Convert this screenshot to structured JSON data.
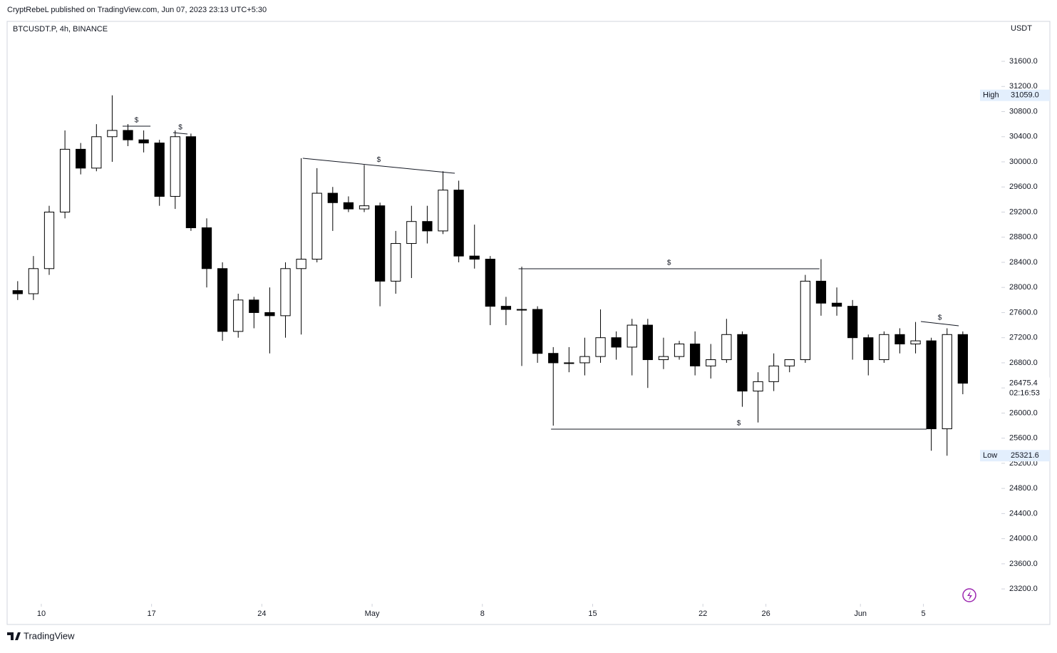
{
  "header": "CryptRebeL published on TradingView.com, Jun 07, 2023 23:13 UTC+5:30",
  "footer": "TradingView",
  "chart_data": {
    "type": "candlestick",
    "title": "BTCUSDT.P, 4h, BINANCE",
    "currency": "USDT",
    "up_color": "#ffffff",
    "down_color": "#000000",
    "candles": [
      [
        27950,
        28100,
        27800,
        27900
      ],
      [
        27900,
        28500,
        27800,
        28300
      ],
      [
        28300,
        29300,
        28200,
        29200
      ],
      [
        29200,
        30500,
        29100,
        30200
      ],
      [
        30200,
        30300,
        29800,
        29900
      ],
      [
        29900,
        30600,
        29850,
        30400
      ],
      [
        30400,
        31059,
        30000,
        30500
      ],
      [
        30500,
        30600,
        30250,
        30350
      ],
      [
        30350,
        30500,
        30150,
        30300
      ],
      [
        30300,
        30350,
        29300,
        29450
      ],
      [
        29450,
        30500,
        29250,
        30400
      ],
      [
        30400,
        30450,
        28900,
        28950
      ],
      [
        28950,
        29100,
        28000,
        28300
      ],
      [
        28300,
        28400,
        27150,
        27300
      ],
      [
        27300,
        27900,
        27200,
        27800
      ],
      [
        27800,
        27850,
        27350,
        27600
      ],
      [
        27600,
        28000,
        26950,
        27550
      ],
      [
        27550,
        28400,
        27200,
        28300
      ],
      [
        28300,
        30057,
        27250,
        28450
      ],
      [
        28450,
        29900,
        28400,
        29500
      ],
      [
        29500,
        29600,
        28900,
        29350
      ],
      [
        29350,
        29450,
        29200,
        29250
      ],
      [
        29250,
        29950,
        29200,
        29300
      ],
      [
        29300,
        29350,
        27700,
        28100
      ],
      [
        28100,
        28900,
        27900,
        28700
      ],
      [
        28700,
        29300,
        28150,
        29050
      ],
      [
        29050,
        29300,
        28700,
        28900
      ],
      [
        28900,
        29850,
        28850,
        29550
      ],
      [
        29550,
        29700,
        28400,
        28500
      ],
      [
        28500,
        29000,
        28300,
        28450
      ],
      [
        28450,
        28500,
        27400,
        27700
      ],
      [
        27700,
        27850,
        27400,
        27650
      ],
      [
        27650,
        28330,
        26750,
        27650
      ],
      [
        27650,
        27700,
        26800,
        26950
      ],
      [
        26950,
        27050,
        25800,
        26800
      ],
      [
        26800,
        27050,
        26650,
        26800
      ],
      [
        26800,
        27200,
        26600,
        26900
      ],
      [
        26900,
        27650,
        26800,
        27200
      ],
      [
        27200,
        27300,
        26850,
        27050
      ],
      [
        27050,
        27500,
        26600,
        27400
      ],
      [
        27400,
        27500,
        26400,
        26850
      ],
      [
        26850,
        27200,
        26700,
        26900
      ],
      [
        26900,
        27150,
        26850,
        27100
      ],
      [
        27100,
        27300,
        26600,
        26750
      ],
      [
        26750,
        27100,
        26550,
        26850
      ],
      [
        26850,
        27500,
        26800,
        27250
      ],
      [
        27250,
        27300,
        26100,
        26350
      ],
      [
        26350,
        26650,
        25850,
        26500
      ],
      [
        26500,
        26950,
        26350,
        26750
      ],
      [
        26750,
        26850,
        26650,
        26850
      ],
      [
        26850,
        28200,
        26800,
        28100
      ],
      [
        28100,
        28450,
        27550,
        27750
      ],
      [
        27750,
        28000,
        27550,
        27700
      ],
      [
        27700,
        27800,
        26850,
        27200
      ],
      [
        27200,
        27250,
        26600,
        26850
      ],
      [
        26850,
        27300,
        26800,
        27250
      ],
      [
        27250,
        27350,
        26950,
        27100
      ],
      [
        27100,
        27450,
        26950,
        27150
      ],
      [
        27150,
        27200,
        25400,
        25750
      ],
      [
        25750,
        27350,
        25321.6,
        27250
      ],
      [
        27250,
        27300,
        26300,
        26475.4
      ]
    ],
    "xlim": [
      -0.67,
      62.45
    ],
    "xticks": [
      {
        "value": 2,
        "label": "10"
      },
      {
        "value": 9,
        "label": "17"
      },
      {
        "value": 16,
        "label": "24"
      },
      {
        "value": 23,
        "label": "May"
      },
      {
        "value": 30,
        "label": "8"
      },
      {
        "value": 37,
        "label": "15"
      },
      {
        "value": 44,
        "label": "22"
      },
      {
        "value": 48,
        "label": "26"
      },
      {
        "value": 54,
        "label": "Jun"
      },
      {
        "value": 58,
        "label": "5"
      }
    ],
    "ylim": [
      22963,
      32236
    ],
    "yticks": [
      {
        "value": 23200,
        "label": "23200.0"
      },
      {
        "value": 23600,
        "label": "23600.0"
      },
      {
        "value": 24000,
        "label": "24000.0"
      },
      {
        "value": 24400,
        "label": "24400.0"
      },
      {
        "value": 24800,
        "label": "24800.0"
      },
      {
        "value": 25200,
        "label": "25200.0"
      },
      {
        "value": 25600,
        "label": "25600.0"
      },
      {
        "value": 26000,
        "label": "26000.0"
      },
      {
        "value": 26400,
        "label": "26400.0"
      },
      {
        "value": 26800,
        "label": "26800.0"
      },
      {
        "value": 27200,
        "label": "27200.0"
      },
      {
        "value": 27600,
        "label": "27600.0"
      },
      {
        "value": 28000,
        "label": "28000.0"
      },
      {
        "value": 28400,
        "label": "28400.0"
      },
      {
        "value": 28800,
        "label": "28800.0"
      },
      {
        "value": 29200,
        "label": "29200.0"
      },
      {
        "value": 29600,
        "label": "29600.0"
      },
      {
        "value": 30000,
        "label": "30000.0"
      },
      {
        "value": 30400,
        "label": "30400.0"
      },
      {
        "value": 30800,
        "label": "30800.0"
      },
      {
        "value": 31200,
        "label": "31200.0"
      },
      {
        "value": 31600,
        "label": "31600.0"
      }
    ],
    "price_labels": [
      {
        "name": "High",
        "value": 31059,
        "label": "31059.0"
      },
      {
        "name": "Low",
        "value": 25321.6,
        "label": "25321.6"
      }
    ],
    "last_price": {
      "value": 26475.4,
      "label": "26475.4",
      "countdown": "02:16:53"
    },
    "levels": [
      {
        "label": "$",
        "x": [
          6.66,
          8.43
        ],
        "y": [
          30568,
          30568
        ]
      },
      {
        "label": "$",
        "x": [
          9.87,
          10.78
        ],
        "y": [
          30465,
          30443
        ]
      },
      {
        "label": "$",
        "x": [
          18.1,
          27.75
        ],
        "y": [
          30057,
          29818
        ]
      },
      {
        "label": "$",
        "x": [
          31.8,
          50.9
        ],
        "y": [
          28298,
          28298
        ]
      },
      {
        "label": "$",
        "x": [
          33.86,
          57.7
        ],
        "y": [
          25744,
          25744
        ]
      },
      {
        "label": "$",
        "x": [
          57.34,
          59.74
        ],
        "y": [
          27458,
          27390
        ]
      }
    ]
  }
}
